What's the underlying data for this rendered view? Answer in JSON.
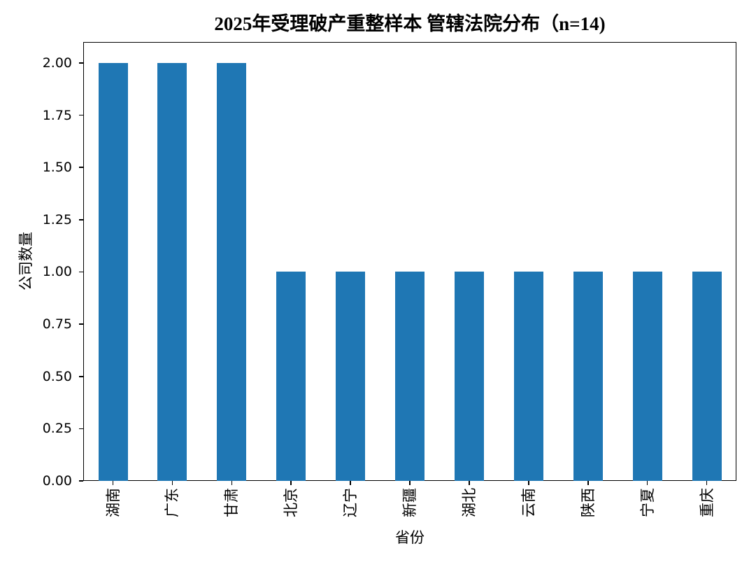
{
  "chart_data": {
    "type": "bar",
    "title": "2025年受理破产重整样本 管辖法院分布（n=14)",
    "xlabel": "省份",
    "ylabel": "公司数量",
    "categories": [
      "湖南",
      "广东",
      "甘肃",
      "北京",
      "辽宁",
      "新疆",
      "湖北",
      "云南",
      "陕西",
      "宁夏",
      "重庆"
    ],
    "values": [
      2,
      2,
      2,
      1,
      1,
      1,
      1,
      1,
      1,
      1,
      1
    ],
    "ylim": [
      0,
      2.1
    ],
    "ytick_labels": [
      "0.00",
      "0.25",
      "0.50",
      "0.75",
      "1.00",
      "1.25",
      "1.50",
      "1.75",
      "2.00"
    ],
    "bar_color": "#1f77b4",
    "grid": false,
    "legend": null,
    "xtick_rotation_deg": 90
  }
}
